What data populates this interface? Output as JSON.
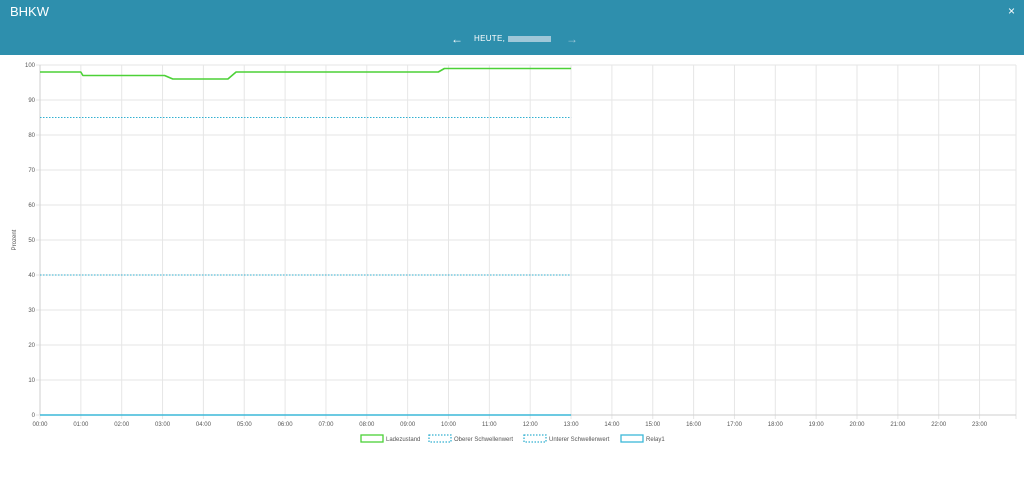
{
  "window": {
    "title": "BHKW",
    "close_glyph": "×",
    "close_icon": "close-icon"
  },
  "date_nav": {
    "prev_glyph": "←",
    "prev_icon": "arrow-left-icon",
    "label": "HEUTE,",
    "next_glyph": "→",
    "next_icon": "arrow-right-icon"
  },
  "chart_data": {
    "type": "line",
    "ylabel": "Prozent",
    "xlabel": "",
    "ylim": [
      0,
      100
    ],
    "y_ticks": [
      "0",
      "10",
      "20",
      "30",
      "40",
      "50",
      "60",
      "70",
      "80",
      "90",
      "100"
    ],
    "x_ticks": [
      "00:00",
      "01:00",
      "02:00",
      "03:00",
      "04:00",
      "05:00",
      "06:00",
      "07:00",
      "08:00",
      "09:00",
      "10:00",
      "11:00",
      "12:00",
      "13:00",
      "14:00",
      "15:00",
      "16:00",
      "17:00",
      "18:00",
      "19:00",
      "20:00",
      "21:00",
      "22:00",
      "23:00"
    ],
    "xlim_hours": [
      0,
      24
    ],
    "grid": true,
    "legend_position": "bottom",
    "series": [
      {
        "name": "Ladezustand",
        "color": "#4cd137",
        "style": "solid",
        "points": [
          [
            0,
            98
          ],
          [
            1.0,
            98
          ],
          [
            1.05,
            97
          ],
          [
            3.05,
            97
          ],
          [
            3.25,
            96
          ],
          [
            4.6,
            96
          ],
          [
            4.8,
            98
          ],
          [
            9.75,
            98
          ],
          [
            9.9,
            99
          ],
          [
            13.0,
            99
          ]
        ]
      },
      {
        "name": "Oberer Schwellenwert",
        "color": "#33b0d1",
        "style": "dotted",
        "points": [
          [
            0,
            85
          ],
          [
            13.0,
            85
          ]
        ]
      },
      {
        "name": "Unterer Schwellenwert",
        "color": "#33b0d1",
        "style": "dotted",
        "points": [
          [
            0,
            40
          ],
          [
            13.0,
            40
          ]
        ]
      },
      {
        "name": "Relay1",
        "color": "#3cb8d8",
        "style": "solid",
        "points": [
          [
            0,
            0
          ],
          [
            13.0,
            0
          ]
        ]
      }
    ]
  }
}
